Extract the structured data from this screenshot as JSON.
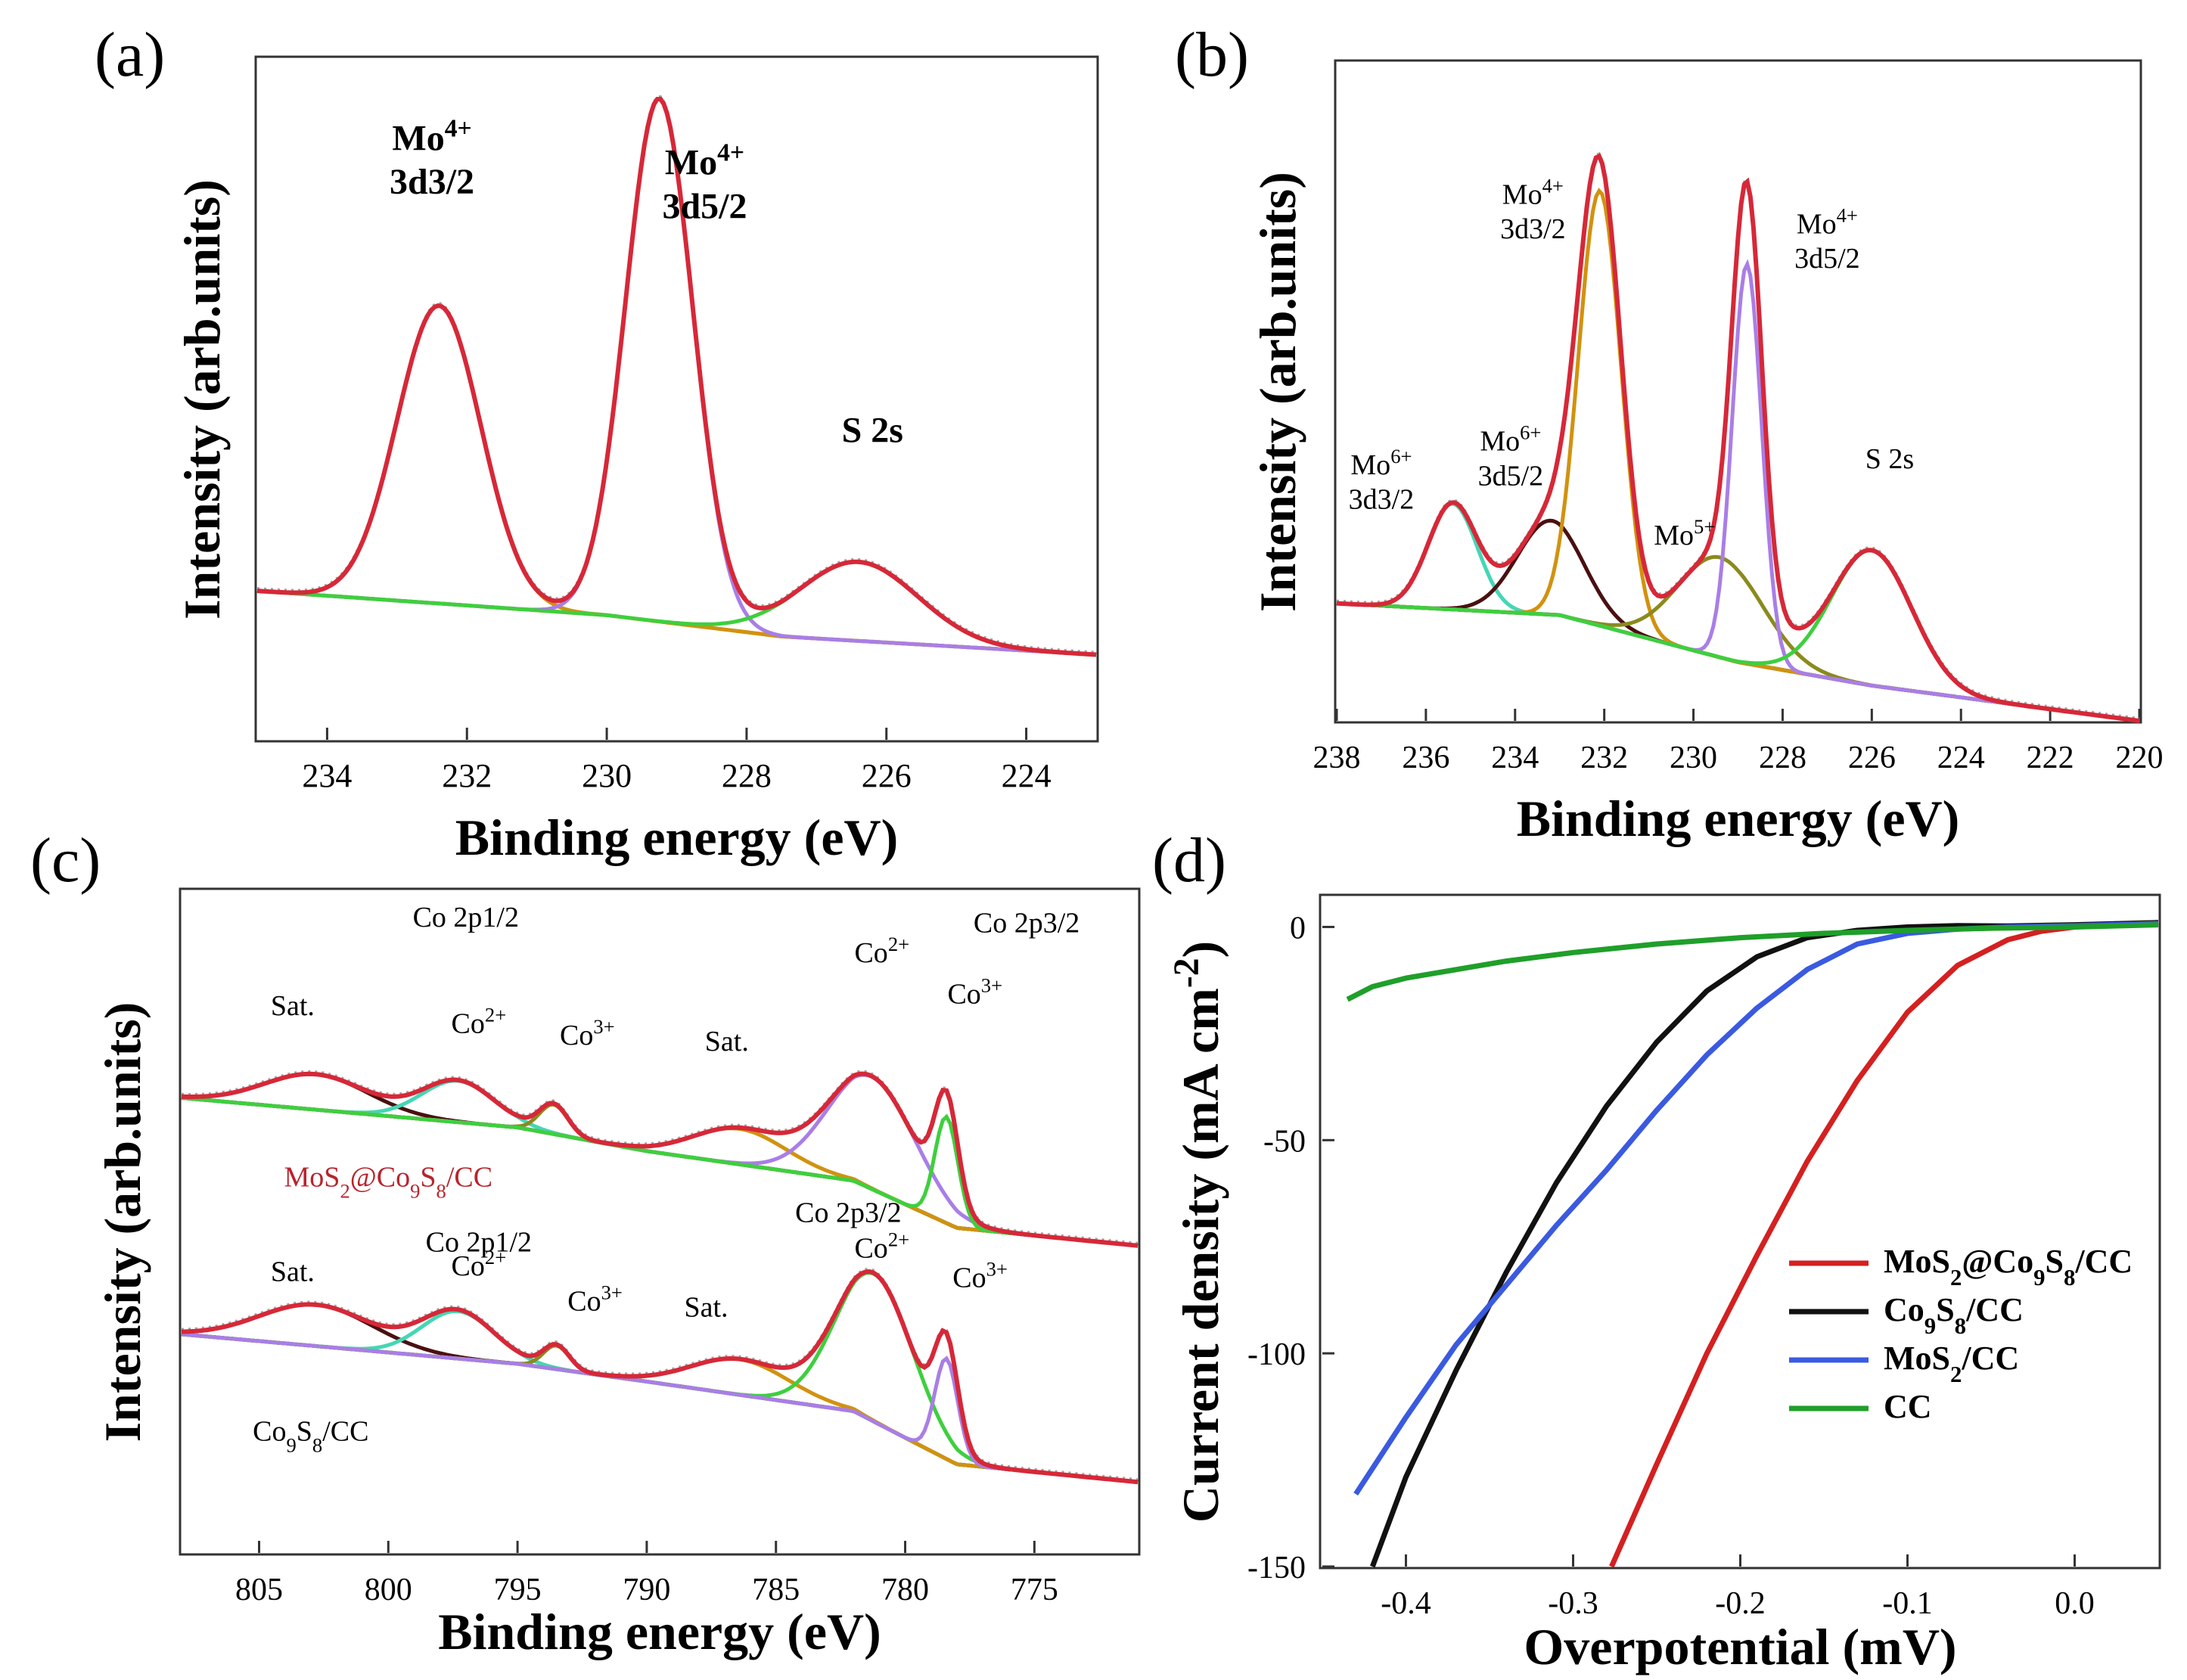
{
  "colors": {
    "envelope": "#d62838",
    "raw": "#a3a3a3",
    "orange": "#d1920f",
    "purple": "#a97ee6",
    "teal": "#45d6b4",
    "green": "#3ecf3e",
    "olive": "#8a8a1e",
    "maroon": "#4a1010",
    "bg_blue": "#3f8fcc",
    "line_red": "#d42020",
    "line_black": "#111111",
    "line_blue": "#3a5ae0",
    "line_green": "#1f9f2a",
    "label_red": "#b8242c"
  },
  "chart_data": [
    {
      "panel": "(a)",
      "type": "line",
      "xlabel": "Binding energy (eV)",
      "ylabel": "Intensity (arb.units)",
      "xlim": [
        235,
        223
      ],
      "ylim": [
        0,
        1.12
      ],
      "xticks": [
        "234",
        "232",
        "230",
        "228",
        "226",
        "224"
      ],
      "xtick_values": [
        234,
        232,
        230,
        228,
        226,
        224
      ],
      "baseline": {
        "x": [
          235,
          230,
          227.5,
          223
        ],
        "y": [
          0.245,
          0.205,
          0.17,
          0.14
        ]
      },
      "components": [
        {
          "name": "Mo4+ 3d3/2 fit",
          "color": "orange",
          "center": 232.4,
          "sigma": 0.6,
          "amp": 0.49
        },
        {
          "name": "Mo4+ 3d5/2 fit",
          "color": "purple",
          "center": 229.25,
          "sigma": 0.48,
          "amp": 0.86
        },
        {
          "name": "S 2s fit",
          "color": "green",
          "center": 226.4,
          "sigma": 0.85,
          "amp": 0.13
        }
      ],
      "annotations": [
        {
          "line1": "Mo",
          "sup": "4+",
          "line2": "3d3/2",
          "x": 232.5,
          "y": 0.97,
          "bold": true
        },
        {
          "line1": "Mo",
          "sup": "4+",
          "line2": "3d5/2",
          "x": 228.6,
          "y": 0.93,
          "bold": true
        },
        {
          "line1": "S 2s",
          "x": 226.2,
          "y": 0.49,
          "bold": true
        }
      ]
    },
    {
      "panel": "(b)",
      "type": "line",
      "xlabel": "Binding energy (eV)",
      "ylabel": "Intensity (arb.units)",
      "xlim": [
        238,
        220
      ],
      "ylim": [
        0,
        1.12
      ],
      "xticks": [
        "238",
        "236",
        "234",
        "232",
        "230",
        "228",
        "226",
        "224",
        "222",
        "220"
      ],
      "xtick_values": [
        238,
        236,
        234,
        232,
        230,
        228,
        226,
        224,
        222,
        220
      ],
      "baseline": {
        "x": [
          238,
          233,
          229,
          226,
          220
        ],
        "y": [
          0.2,
          0.18,
          0.1,
          0.06,
          0.0
        ]
      },
      "components": [
        {
          "name": "Mo6+ 3d3/2 fit",
          "color": "teal",
          "center": 235.4,
          "sigma": 0.55,
          "amp": 0.18
        },
        {
          "name": "Mo6+ 3d5/2 fit",
          "color": "maroon",
          "center": 233.2,
          "sigma": 0.75,
          "amp": 0.16
        },
        {
          "name": "Mo4+ 3d3/2 fit",
          "color": "orange",
          "center": 232.1,
          "sigma": 0.48,
          "amp": 0.74
        },
        {
          "name": "Mo5+ fit",
          "color": "olive",
          "center": 229.4,
          "sigma": 0.95,
          "amp": 0.17
        },
        {
          "name": "Mo4+ 3d5/2 fit",
          "color": "purple",
          "center": 228.8,
          "sigma": 0.33,
          "amp": 0.68
        },
        {
          "name": "S 2s fit",
          "color": "green",
          "center": 226.0,
          "sigma": 0.9,
          "amp": 0.23
        }
      ],
      "annotations": [
        {
          "line1": "Mo",
          "sup": "6+",
          "line2": "3d3/2",
          "x": 237.0,
          "y": 0.42
        },
        {
          "line1": "Mo",
          "sup": "6+",
          "line2": "3d5/2",
          "x": 234.1,
          "y": 0.46
        },
        {
          "line1": "Mo",
          "sup": "4+",
          "line2": "3d3/2",
          "x": 233.6,
          "y": 0.88
        },
        {
          "line1": "Mo",
          "sup": "5+",
          "x": 230.2,
          "y": 0.3
        },
        {
          "line1": "Mo",
          "sup": "4+",
          "line2": "3d5/2",
          "x": 227.0,
          "y": 0.83
        },
        {
          "line1": "S 2s",
          "x": 225.6,
          "y": 0.43
        }
      ]
    },
    {
      "panel": "(c)",
      "type": "line",
      "xlabel": "Binding energy (eV)",
      "ylabel": "Intensity (arb.units)",
      "xlim": [
        808,
        771
      ],
      "ylim": [
        0,
        1.12
      ],
      "xticks": [
        "805",
        "800",
        "795",
        "790",
        "785",
        "780",
        "775"
      ],
      "xtick_values": [
        805,
        800,
        795,
        790,
        785,
        780,
        775
      ],
      "spectra": [
        {
          "sample": "MoS2@Co9S8/CC",
          "baseline": {
            "x": [
              808,
              795,
              790,
              782,
              778,
              771
            ],
            "y": [
              0.77,
              0.72,
              0.68,
              0.63,
              0.55,
              0.52
            ]
          },
          "components": [
            {
              "name": "Sat.",
              "color": "maroon",
              "center": 802.8,
              "sigma": 2.0,
              "amp": 0.06
            },
            {
              "name": "Co2+",
              "color": "teal",
              "center": 797.3,
              "sigma": 1.4,
              "amp": 0.07
            },
            {
              "name": "Co3+",
              "color": "olive",
              "center": 793.6,
              "sigma": 0.55,
              "amp": 0.05
            },
            {
              "name": "Sat.",
              "color": "orange",
              "center": 786.4,
              "sigma": 1.8,
              "amp": 0.06
            },
            {
              "name": "Co2+",
              "color": "purple",
              "center": 781.3,
              "sigma": 1.7,
              "amp": 0.19
            },
            {
              "name": "Co3+",
              "color": "green",
              "center": 778.4,
              "sigma": 0.45,
              "amp": 0.18
            }
          ]
        },
        {
          "sample": "Co9S8/CC",
          "baseline": {
            "x": [
              808,
              795,
              790,
              782,
              778,
              771
            ],
            "y": [
              0.37,
              0.32,
              0.29,
              0.24,
              0.15,
              0.12
            ]
          },
          "components": [
            {
              "name": "Sat.",
              "color": "maroon",
              "center": 802.8,
              "sigma": 2.2,
              "amp": 0.07
            },
            {
              "name": "Co2+",
              "color": "teal",
              "center": 797.3,
              "sigma": 1.4,
              "amp": 0.08
            },
            {
              "name": "Co3+",
              "color": "olive",
              "center": 793.5,
              "sigma": 0.5,
              "amp": 0.04
            },
            {
              "name": "Sat.",
              "color": "orange",
              "center": 786.4,
              "sigma": 1.9,
              "amp": 0.06
            },
            {
              "name": "Co2+",
              "color": "green",
              "center": 781.2,
              "sigma": 1.5,
              "amp": 0.25
            },
            {
              "name": "Co3+",
              "color": "purple",
              "center": 778.4,
              "sigma": 0.45,
              "amp": 0.17
            }
          ]
        }
      ],
      "annotations": [
        {
          "line1": "Co 2p1/2",
          "x": 797.0,
          "y": 1.06
        },
        {
          "line1": "Sat.",
          "x": 803.7,
          "y": 0.91
        },
        {
          "line1": "Co",
          "sup": "2+",
          "x": 796.5,
          "y": 0.88
        },
        {
          "line1": "Co",
          "sup": "3+",
          "x": 792.3,
          "y": 0.86
        },
        {
          "line1": "Sat.",
          "x": 786.9,
          "y": 0.85
        },
        {
          "line1": "Co",
          "sup": "2+",
          "x": 780.9,
          "y": 1.0
        },
        {
          "line1": "Co 2p3/2",
          "x": 775.3,
          "y": 1.05
        },
        {
          "line1": "Co",
          "sup": "3+",
          "x": 777.3,
          "y": 0.93
        },
        {
          "line1": "MoS",
          "sub1": "2",
          "line1b": "@Co",
          "sub2": "9",
          "line1c": "S",
          "sub3": "8",
          "line1d": "/CC",
          "x": 800.0,
          "y": 0.62,
          "red": true
        },
        {
          "line1": "Co 2p1/2",
          "x": 796.5,
          "y": 0.51
        },
        {
          "line1": "Co 2p3/2",
          "x": 782.2,
          "y": 0.56
        },
        {
          "line1": "Sat.",
          "x": 803.7,
          "y": 0.46
        },
        {
          "line1": "Co",
          "sup": "2+",
          "x": 796.5,
          "y": 0.47
        },
        {
          "line1": "Co",
          "sup": "2+",
          "x": 780.9,
          "y": 0.5
        },
        {
          "line1": "Co",
          "sup": "3+",
          "x": 792.0,
          "y": 0.41
        },
        {
          "line1": "Sat.",
          "x": 787.7,
          "y": 0.4
        },
        {
          "line1": "Co",
          "sup": "3+",
          "x": 777.1,
          "y": 0.45
        },
        {
          "line1": "Co",
          "sub1": "9",
          "line1b": "S",
          "sub2": "8",
          "line1c": "/CC",
          "x": 803.0,
          "y": 0.19
        }
      ]
    },
    {
      "panel": "(d)",
      "type": "line",
      "xlabel": "Overpotential (mV)",
      "ylabel": "Current density (mA cm",
      "ylabel_sup": "-2",
      "ylabel_end": ")",
      "xlim": [
        -0.45,
        0.05
      ],
      "ylim": [
        -150,
        7
      ],
      "xticks": [
        "-0.4",
        "-0.3",
        "-0.2",
        "-0.1",
        "0.0"
      ],
      "xtick_values": [
        -0.4,
        -0.3,
        -0.2,
        -0.1,
        0.0
      ],
      "yticks": [
        "0",
        "-50",
        "-100",
        "-150"
      ],
      "ytick_values": [
        0,
        -50,
        -100,
        -150
      ],
      "series": [
        {
          "name": "MoS2@Co9S8/CC",
          "color": "line_red",
          "x": [
            -0.277,
            -0.25,
            -0.22,
            -0.19,
            -0.16,
            -0.13,
            -0.1,
            -0.07,
            -0.04,
            -0.02,
            0.0,
            0.02,
            0.05
          ],
          "y": [
            -150,
            -126,
            -100,
            -77,
            -55,
            -36,
            -20,
            -9,
            -3,
            -1,
            0,
            0.6,
            1
          ]
        },
        {
          "name": "Co9S8/CC",
          "color": "line_black",
          "x": [
            -0.42,
            -0.4,
            -0.37,
            -0.34,
            -0.31,
            -0.28,
            -0.25,
            -0.22,
            -0.19,
            -0.16,
            -0.13,
            -0.1,
            -0.07,
            -0.04,
            0.0,
            0.05
          ],
          "y": [
            -150,
            -129,
            -104,
            -81,
            -60,
            -42,
            -27,
            -15,
            -7,
            -2.5,
            -0.8,
            0,
            0.3,
            0.2,
            0.5,
            1
          ]
        },
        {
          "name": "MoS2/CC",
          "color": "line_blue",
          "x": [
            -0.43,
            -0.4,
            -0.37,
            -0.34,
            -0.31,
            -0.28,
            -0.25,
            -0.22,
            -0.19,
            -0.16,
            -0.13,
            -0.1,
            -0.07,
            -0.04,
            0.0,
            0.05
          ],
          "y": [
            -133,
            -115,
            -98,
            -84,
            -70,
            -57,
            -43,
            -30,
            -19,
            -10,
            -4,
            -1.5,
            -0.5,
            0,
            0.3,
            0.8
          ]
        },
        {
          "name": "CC",
          "color": "line_green",
          "x": [
            -0.435,
            -0.42,
            -0.4,
            -0.37,
            -0.34,
            -0.3,
            -0.25,
            -0.2,
            -0.15,
            -0.1,
            -0.05,
            0.0,
            0.05
          ],
          "y": [
            -17,
            -14,
            -12,
            -10,
            -8,
            -6,
            -4,
            -2.5,
            -1.5,
            -0.8,
            -0.3,
            0,
            0.5
          ]
        }
      ],
      "legend_labels": [
        {
          "a": "MoS",
          "s1": "2",
          "b": "@Co",
          "s2": "9",
          "c": "S",
          "s3": "8",
          "d": "/CC"
        },
        {
          "a": "Co",
          "s1": "9",
          "b": "S",
          "s2": "8",
          "c": "/CC"
        },
        {
          "a": "MoS",
          "s1": "2",
          "b": "/CC"
        },
        {
          "a": "CC"
        }
      ]
    }
  ]
}
